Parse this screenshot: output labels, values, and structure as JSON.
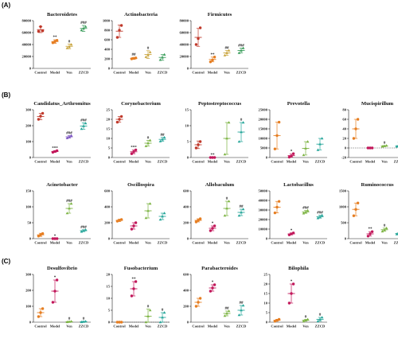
{
  "figure": {
    "sections": [
      {
        "label": "(A)"
      },
      {
        "label": "(B)"
      },
      {
        "label": "(C)"
      }
    ],
    "groups": [
      "Control",
      "Model",
      "Ven",
      "ZZCD"
    ],
    "colors": {
      "Control": "#c0392b",
      "Model": "#e67e22",
      "Ven": "#7cb342",
      "ZZCD": "#27ae60"
    }
  },
  "chart_data": [
    {
      "type": "scatter",
      "title": "Bacteroidetes",
      "section": 0,
      "row": 0,
      "col": 0,
      "ylim": [
        0,
        80000
      ],
      "yticks": [
        0,
        20000,
        40000,
        60000,
        80000
      ],
      "colors": [
        "#c0392b",
        "#e67e22",
        "#c8a33a",
        "#3a9d5b"
      ],
      "means": [
        65000,
        45000,
        37000,
        67000
      ],
      "sd": [
        5000,
        3000,
        4000,
        5000
      ],
      "points": [
        [
          62000,
          70000,
          63000
        ],
        [
          43000,
          45000,
          47000
        ],
        [
          34000,
          36000,
          40000
        ],
        [
          64000,
          67000,
          70000
        ]
      ],
      "marks": [
        "",
        "**",
        "#",
        "###"
      ]
    },
    {
      "type": "scatter",
      "title": "Actinobacteria",
      "section": 0,
      "row": 0,
      "col": 1,
      "ylim": [
        0,
        1000
      ],
      "yticks": [
        0,
        200,
        400,
        600,
        800,
        1000
      ],
      "colors": [
        "#c0392b",
        "#e67e22",
        "#c8a33a",
        "#3a9d5b"
      ],
      "means": [
        780,
        210,
        290,
        230
      ],
      "sd": [
        130,
        20,
        80,
        60
      ],
      "points": [
        [
          650,
          800,
          900
        ],
        [
          200,
          210,
          220
        ],
        [
          240,
          280,
          340
        ],
        [
          180,
          230,
          290
        ]
      ],
      "marks": [
        "",
        "##",
        "#",
        ""
      ]
    },
    {
      "type": "scatter",
      "title": "Firmicutes",
      "section": 0,
      "row": 0,
      "col": 2,
      "ylim": [
        0,
        80000
      ],
      "yticks": [
        0,
        20000,
        40000,
        60000,
        80000
      ],
      "colors": [
        "#c0392b",
        "#e67e22",
        "#c8a33a",
        "#3a9d5b"
      ],
      "means": [
        52000,
        15000,
        26000,
        30000
      ],
      "sd": [
        15000,
        4000,
        4000,
        4000
      ],
      "points": [
        [
          40000,
          50000,
          68000
        ],
        [
          11000,
          14000,
          19000
        ],
        [
          22000,
          26000,
          30000
        ],
        [
          26000,
          30000,
          34000
        ]
      ],
      "marks": [
        "",
        "**",
        "##",
        "###"
      ]
    },
    {
      "type": "scatter",
      "title": "Candidatus_Arthromitus",
      "section": 1,
      "row": 0,
      "col": 0,
      "ylim": [
        0,
        300
      ],
      "yticks": [
        0,
        100,
        200,
        300
      ],
      "colors": [
        "#c0392b",
        "#c2185b",
        "#7e57c2",
        "#26a69a"
      ],
      "means": [
        258,
        38,
        130,
        198
      ],
      "sd": [
        20,
        5,
        8,
        20
      ],
      "points": [
        [
          240,
          260,
          278
        ],
        [
          33,
          38,
          43
        ],
        [
          122,
          130,
          138
        ],
        [
          180,
          198,
          215
        ]
      ],
      "marks": [
        "",
        "***",
        "###",
        "###"
      ]
    },
    {
      "type": "scatter",
      "title": "Corynebacterium",
      "section": 1,
      "row": 0,
      "col": 1,
      "ylim": [
        0,
        25
      ],
      "yticks": [
        0,
        5,
        10,
        15,
        20,
        25
      ],
      "colors": [
        "#c0392b",
        "#c2185b",
        "#7cb342",
        "#26a69a"
      ],
      "means": [
        20,
        3,
        7.5,
        9.5
      ],
      "sd": [
        1.5,
        1,
        1.5,
        1
      ],
      "points": [
        [
          18.5,
          20,
          21.5
        ],
        [
          2,
          3,
          4
        ],
        [
          6,
          7.5,
          9
        ],
        [
          8.5,
          9.5,
          10.5
        ]
      ],
      "marks": [
        "",
        "***",
        "#",
        "##"
      ]
    },
    {
      "type": "scatter",
      "title": "Peptostreptococcus",
      "section": 1,
      "row": 0,
      "col": 2,
      "ylim": [
        0,
        15
      ],
      "yticks": [
        0,
        5,
        10,
        15
      ],
      "colors": [
        "#c0392b",
        "#c2185b",
        "#7cb342",
        "#26a69a"
      ],
      "means": [
        4,
        0,
        6,
        8
      ],
      "sd": [
        1.2,
        0,
        5,
        3
      ],
      "points": [
        [
          3,
          4,
          5
        ],
        [
          0,
          0,
          0
        ],
        [
          1,
          6,
          11
        ],
        [
          5,
          8,
          11
        ]
      ],
      "marks": [
        "",
        "**",
        "",
        "#"
      ]
    },
    {
      "type": "scatter",
      "title": "Prevotella",
      "section": 1,
      "row": 0,
      "col": 3,
      "ylim": [
        0,
        25000
      ],
      "yticks": [
        0,
        5000,
        10000,
        15000,
        20000,
        25000
      ],
      "colors": [
        "#e67e22",
        "#c2185b",
        "#7cb342",
        "#26a69a"
      ],
      "means": [
        11500,
        1000,
        4800,
        7000
      ],
      "sd": [
        7000,
        800,
        3500,
        3000
      ],
      "points": [
        [
          4500,
          11500,
          18500
        ],
        [
          200,
          800,
          2000
        ],
        [
          1300,
          4800,
          8300
        ],
        [
          4000,
          7000,
          10000
        ]
      ],
      "marks": [
        "",
        "*",
        "",
        ""
      ]
    },
    {
      "type": "scatter",
      "title": "Mucispirillum",
      "section": 1,
      "row": 0,
      "col": 4,
      "ylim": [
        -20,
        80
      ],
      "yticks": [
        -20,
        0,
        20,
        40,
        60,
        80
      ],
      "zero_line": true,
      "colors": [
        "#e67e22",
        "#c2185b",
        "#7cb342",
        "#26a69a"
      ],
      "means": [
        40,
        0,
        4,
        4
      ],
      "sd": [
        20,
        1,
        1,
        1
      ],
      "points": [
        [
          20,
          40,
          60
        ],
        [
          0,
          0,
          0
        ],
        [
          3,
          4,
          5
        ],
        [
          3,
          4,
          5
        ]
      ],
      "marks": [
        "",
        "",
        "#",
        "#"
      ]
    },
    {
      "type": "scatter",
      "title": "Acinetobacter",
      "section": 1,
      "row": 1,
      "col": 0,
      "ylim": [
        0,
        150
      ],
      "yticks": [
        0,
        50,
        100,
        150
      ],
      "colors": [
        "#e67e22",
        "#c2185b",
        "#7cb342",
        "#26a69a"
      ],
      "means": [
        12,
        0,
        95,
        25
      ],
      "sd": [
        5,
        0,
        15,
        3
      ],
      "points": [
        [
          8,
          12,
          16
        ],
        [
          0,
          0,
          0
        ],
        [
          80,
          95,
          110
        ],
        [
          22,
          25,
          28
        ]
      ],
      "marks": [
        "",
        "*",
        "###",
        "###"
      ]
    },
    {
      "type": "scatter",
      "title": "Oscillospira",
      "section": 1,
      "row": 1,
      "col": 1,
      "ylim": [
        0,
        600
      ],
      "yticks": [
        0,
        200,
        400,
        600
      ],
      "colors": [
        "#e67e22",
        "#c2185b",
        "#7cb342",
        "#26a69a"
      ],
      "means": [
        230,
        160,
        350,
        280
      ],
      "sd": [
        15,
        40,
        90,
        40
      ],
      "points": [
        [
          220,
          230,
          240
        ],
        [
          120,
          160,
          200
        ],
        [
          260,
          350,
          440
        ],
        [
          240,
          280,
          320
        ]
      ],
      "marks": [
        "",
        "",
        "",
        ""
      ]
    },
    {
      "type": "scatter",
      "title": "Allobaculum",
      "section": 1,
      "row": 1,
      "col": 2,
      "ylim": [
        0,
        600
      ],
      "yticks": [
        0,
        200,
        400,
        600
      ],
      "colors": [
        "#e67e22",
        "#c2185b",
        "#7cb342",
        "#26a69a"
      ],
      "means": [
        230,
        130,
        380,
        330
      ],
      "sd": [
        20,
        30,
        90,
        40
      ],
      "points": [
        [
          210,
          230,
          250
        ],
        [
          100,
          130,
          160
        ],
        [
          290,
          380,
          470
        ],
        [
          290,
          330,
          370
        ]
      ],
      "marks": [
        "",
        "*",
        "#",
        "##"
      ]
    },
    {
      "type": "scatter",
      "title": "Lactobacillus",
      "section": 1,
      "row": 1,
      "col": 3,
      "ylim": [
        0,
        50000
      ],
      "yticks": [
        0,
        10000,
        20000,
        30000,
        40000,
        50000
      ],
      "colors": [
        "#e67e22",
        "#c2185b",
        "#7cb342",
        "#26a69a"
      ],
      "means": [
        33000,
        5000,
        28000,
        23000
      ],
      "sd": [
        6000,
        1000,
        1500,
        1500
      ],
      "points": [
        [
          27000,
          33000,
          39000
        ],
        [
          4000,
          5000,
          6000
        ],
        [
          26500,
          28000,
          29500
        ],
        [
          21500,
          23000,
          24500
        ]
      ],
      "marks": [
        "",
        "*",
        "###",
        "###"
      ]
    },
    {
      "type": "scatter",
      "title": "Ruminococcus",
      "section": 1,
      "row": 1,
      "col": 4,
      "ylim": [
        0,
        1500
      ],
      "yticks": [
        0,
        500,
        1000,
        1500
      ],
      "colors": [
        "#e67e22",
        "#c2185b",
        "#7cb342",
        "#26a69a"
      ],
      "means": [
        920,
        150,
        280,
        160
      ],
      "sd": [
        200,
        70,
        50,
        20
      ],
      "points": [
        [
          720,
          920,
          1120
        ],
        [
          80,
          150,
          220
        ],
        [
          230,
          280,
          330
        ],
        [
          140,
          160,
          180
        ]
      ],
      "marks": [
        "",
        "**",
        "#",
        ""
      ]
    },
    {
      "type": "scatter",
      "title": "Desulfovibrio",
      "section": 2,
      "row": 0,
      "col": 0,
      "ylim": [
        0,
        300
      ],
      "yticks": [
        0,
        100,
        200,
        300
      ],
      "colors": [
        "#e67e22",
        "#c2185b",
        "#7cb342",
        "#26a69a"
      ],
      "means": [
        60,
        195,
        3,
        3
      ],
      "sd": [
        25,
        70,
        2,
        2
      ],
      "points": [
        [
          35,
          60,
          85
        ],
        [
          125,
          195,
          265
        ],
        [
          1,
          3,
          5
        ],
        [
          1,
          3,
          5
        ]
      ],
      "marks": [
        "",
        "*",
        "#",
        "#"
      ]
    },
    {
      "type": "scatter",
      "title": "Fusobacterium",
      "section": 2,
      "row": 0,
      "col": 1,
      "ylim": [
        0,
        20
      ],
      "yticks": [
        0,
        5,
        10,
        15,
        20
      ],
      "zero_line": true,
      "colors": [
        "#e67e22",
        "#c2185b",
        "#7cb342",
        "#26a69a"
      ],
      "means": [
        0,
        14,
        2.5,
        2
      ],
      "sd": [
        0,
        3,
        3,
        2
      ],
      "points": [
        [
          0,
          0,
          0
        ],
        [
          11,
          14,
          17
        ],
        [
          0,
          2.5,
          5
        ],
        [
          0,
          2,
          4
        ]
      ],
      "marks": [
        "",
        "**",
        "#",
        "#"
      ]
    },
    {
      "type": "scatter",
      "title": "Parabacteroides",
      "section": 2,
      "row": 0,
      "col": 2,
      "ylim": [
        0,
        600
      ],
      "yticks": [
        0,
        200,
        400,
        600
      ],
      "colors": [
        "#e67e22",
        "#c2185b",
        "#7cb342",
        "#26a69a"
      ],
      "means": [
        250,
        430,
        110,
        150
      ],
      "sd": [
        50,
        40,
        30,
        60
      ],
      "points": [
        [
          200,
          250,
          300
        ],
        [
          390,
          430,
          470
        ],
        [
          80,
          110,
          140
        ],
        [
          90,
          150,
          210
        ]
      ],
      "marks": [
        "",
        "*",
        "##",
        "##"
      ]
    },
    {
      "type": "scatter",
      "title": "Bilophila",
      "section": 2,
      "row": 0,
      "col": 3,
      "ylim": [
        0,
        25
      ],
      "yticks": [
        0,
        5,
        10,
        15,
        20,
        25
      ],
      "colors": [
        "#e67e22",
        "#c2185b",
        "#7cb342",
        "#26a69a"
      ],
      "means": [
        1,
        15,
        1,
        1.5
      ],
      "sd": [
        0.5,
        5,
        0.5,
        1
      ],
      "points": [
        [
          0.5,
          1,
          1.5
        ],
        [
          10,
          15,
          20
        ],
        [
          0.5,
          1,
          1.5
        ],
        [
          0.5,
          1.5,
          2.5
        ]
      ],
      "marks": [
        "",
        "*",
        "#",
        "#"
      ]
    }
  ]
}
